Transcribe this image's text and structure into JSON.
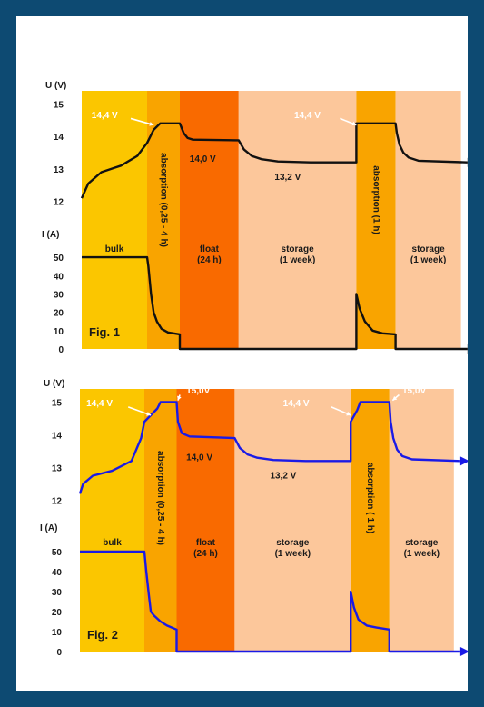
{
  "chart_data": [
    {
      "type": "line",
      "figure_label": "Fig. 1",
      "line_color": "#111111",
      "voltage_axis": {
        "label": "U (V)",
        "ticks": [
          "15",
          "14",
          "13",
          "12"
        ],
        "range": [
          11.6,
          15.4
        ]
      },
      "current_axis": {
        "label": "I (A)",
        "ticks": [
          "50",
          "40",
          "30",
          "20",
          "10",
          "0"
        ],
        "range": [
          0,
          55
        ]
      },
      "phases": [
        {
          "name": "bulk",
          "line1": "bulk",
          "line2": "",
          "color": "#fbc600",
          "start": 0,
          "end": 1,
          "rotated": false
        },
        {
          "name": "absorption1",
          "line1": "absorption (0,25 - 4 h)",
          "line2": "",
          "color": "#f9a400",
          "start": 1,
          "end": 1.5,
          "rotated": true
        },
        {
          "name": "float",
          "line1": "float",
          "line2": "(24 h)",
          "color": "#f96a00",
          "start": 1.5,
          "end": 2.4,
          "rotated": false
        },
        {
          "name": "storage1",
          "line1": "storage",
          "line2": "(1 week)",
          "color": "#fcc79b",
          "start": 2.4,
          "end": 4.2,
          "rotated": false
        },
        {
          "name": "absorption2",
          "line1": "absorption (1 h)",
          "line2": "",
          "color": "#f9a400",
          "start": 4.2,
          "end": 4.8,
          "rotated": true
        },
        {
          "name": "storage2",
          "line1": "storage",
          "line2": "(1 week)",
          "color": "#fcc79b",
          "start": 4.8,
          "end": 5.8,
          "rotated": false
        }
      ],
      "voltage_labels": [
        {
          "text": "14,4 V",
          "x": 0.15,
          "y": 14.65
        },
        {
          "text": "14,0 V",
          "x": 1.65,
          "y": 13.3
        },
        {
          "text": "13,2 V",
          "x": 2.95,
          "y": 12.75
        },
        {
          "text": "14,4 V",
          "x": 3.25,
          "y": 14.65
        }
      ],
      "voltage_curve": [
        [
          0,
          12.1
        ],
        [
          0.1,
          12.55
        ],
        [
          0.3,
          12.9
        ],
        [
          0.6,
          13.1
        ],
        [
          0.85,
          13.4
        ],
        [
          1.0,
          13.8
        ],
        [
          1.1,
          14.2
        ],
        [
          1.2,
          14.4
        ],
        [
          1.5,
          14.4
        ],
        [
          1.56,
          14.1
        ],
        [
          1.62,
          13.95
        ],
        [
          1.7,
          13.9
        ],
        [
          2.4,
          13.88
        ],
        [
          2.48,
          13.6
        ],
        [
          2.6,
          13.4
        ],
        [
          2.75,
          13.3
        ],
        [
          3.0,
          13.23
        ],
        [
          3.5,
          13.2
        ],
        [
          4.2,
          13.2
        ],
        [
          4.2,
          14.4
        ],
        [
          4.8,
          14.4
        ],
        [
          4.82,
          14.1
        ],
        [
          4.86,
          13.75
        ],
        [
          4.92,
          13.5
        ],
        [
          5.0,
          13.35
        ],
        [
          5.15,
          13.25
        ],
        [
          5.9,
          13.2
        ]
      ],
      "current_curve": [
        [
          0,
          50
        ],
        [
          1.0,
          50
        ],
        [
          1.02,
          45
        ],
        [
          1.06,
          30
        ],
        [
          1.1,
          20
        ],
        [
          1.15,
          15
        ],
        [
          1.22,
          11
        ],
        [
          1.32,
          9
        ],
        [
          1.5,
          8
        ],
        [
          1.5,
          0
        ],
        [
          4.2,
          0
        ],
        [
          4.2,
          30
        ],
        [
          4.25,
          22
        ],
        [
          4.33,
          15
        ],
        [
          4.45,
          10
        ],
        [
          4.6,
          8.5
        ],
        [
          4.8,
          8
        ],
        [
          4.8,
          0
        ],
        [
          5.9,
          0
        ]
      ]
    },
    {
      "type": "line",
      "figure_label": "Fig. 2",
      "line_color": "#1a1ae6",
      "voltage_axis": {
        "label": "U (V)",
        "ticks": [
          "15",
          "14",
          "13",
          "12"
        ],
        "range": [
          11.6,
          15.4
        ]
      },
      "current_axis": {
        "label": "I (A)",
        "ticks": [
          "50",
          "40",
          "30",
          "20",
          "10",
          "0"
        ],
        "range": [
          0,
          55
        ]
      },
      "phases": [
        {
          "name": "bulk",
          "line1": "bulk",
          "line2": "",
          "color": "#fbc600",
          "start": 0,
          "end": 1,
          "rotated": false
        },
        {
          "name": "absorption1",
          "line1": "absorption (0,25 - 4 h)",
          "line2": "",
          "color": "#f9a400",
          "start": 1,
          "end": 1.5,
          "rotated": true
        },
        {
          "name": "float",
          "line1": "float",
          "line2": "(24 h)",
          "color": "#f96a00",
          "start": 1.5,
          "end": 2.4,
          "rotated": false
        },
        {
          "name": "storage1",
          "line1": "storage",
          "line2": "(1 week)",
          "color": "#fcc79b",
          "start": 2.4,
          "end": 4.2,
          "rotated": false
        },
        {
          "name": "absorption2",
          "line1": "absorption ( 1 h)",
          "line2": "",
          "color": "#f9a400",
          "start": 4.2,
          "end": 4.8,
          "rotated": true
        },
        {
          "name": "storage2",
          "line1": "storage",
          "line2": "(1 week)",
          "color": "#fcc79b",
          "start": 4.8,
          "end": 5.8,
          "rotated": false
        }
      ],
      "voltage_labels": [
        {
          "text": "14,4 V",
          "x": 0.1,
          "y": 14.95
        },
        {
          "text": "15,0V",
          "x": 1.65,
          "y": 15.35
        },
        {
          "text": "14,0 V",
          "x": 1.65,
          "y": 13.3
        },
        {
          "text": "13,2 V",
          "x": 2.95,
          "y": 12.75
        },
        {
          "text": "14,4 V",
          "x": 3.15,
          "y": 14.95
        },
        {
          "text": "15,0V",
          "x": 5.0,
          "y": 15.35
        }
      ],
      "voltage_curve": [
        [
          0,
          12.2
        ],
        [
          0.05,
          12.5
        ],
        [
          0.2,
          12.75
        ],
        [
          0.5,
          12.9
        ],
        [
          0.8,
          13.2
        ],
        [
          0.95,
          13.9
        ],
        [
          1.0,
          14.4
        ],
        [
          1.2,
          14.8
        ],
        [
          1.25,
          15.0
        ],
        [
          1.5,
          15.0
        ],
        [
          1.52,
          14.4
        ],
        [
          1.58,
          14.05
        ],
        [
          1.7,
          13.95
        ],
        [
          2.4,
          13.9
        ],
        [
          2.48,
          13.6
        ],
        [
          2.6,
          13.4
        ],
        [
          2.75,
          13.3
        ],
        [
          3.0,
          13.23
        ],
        [
          3.5,
          13.2
        ],
        [
          4.2,
          13.2
        ],
        [
          4.2,
          14.4
        ],
        [
          4.3,
          14.75
        ],
        [
          4.35,
          15.0
        ],
        [
          4.8,
          15.0
        ],
        [
          4.82,
          14.4
        ],
        [
          4.86,
          13.9
        ],
        [
          4.92,
          13.55
        ],
        [
          5.0,
          13.35
        ],
        [
          5.15,
          13.25
        ],
        [
          5.9,
          13.2
        ]
      ],
      "current_curve": [
        [
          0,
          50
        ],
        [
          1.0,
          50
        ],
        [
          1.03,
          40
        ],
        [
          1.07,
          28
        ],
        [
          1.1,
          20
        ],
        [
          1.15,
          18
        ],
        [
          1.25,
          15
        ],
        [
          1.35,
          13
        ],
        [
          1.5,
          11
        ],
        [
          1.5,
          0
        ],
        [
          4.2,
          0
        ],
        [
          4.2,
          30
        ],
        [
          4.25,
          22
        ],
        [
          4.32,
          16
        ],
        [
          4.45,
          13
        ],
        [
          4.6,
          12
        ],
        [
          4.8,
          11
        ],
        [
          4.8,
          0
        ],
        [
          5.9,
          0
        ]
      ]
    }
  ]
}
